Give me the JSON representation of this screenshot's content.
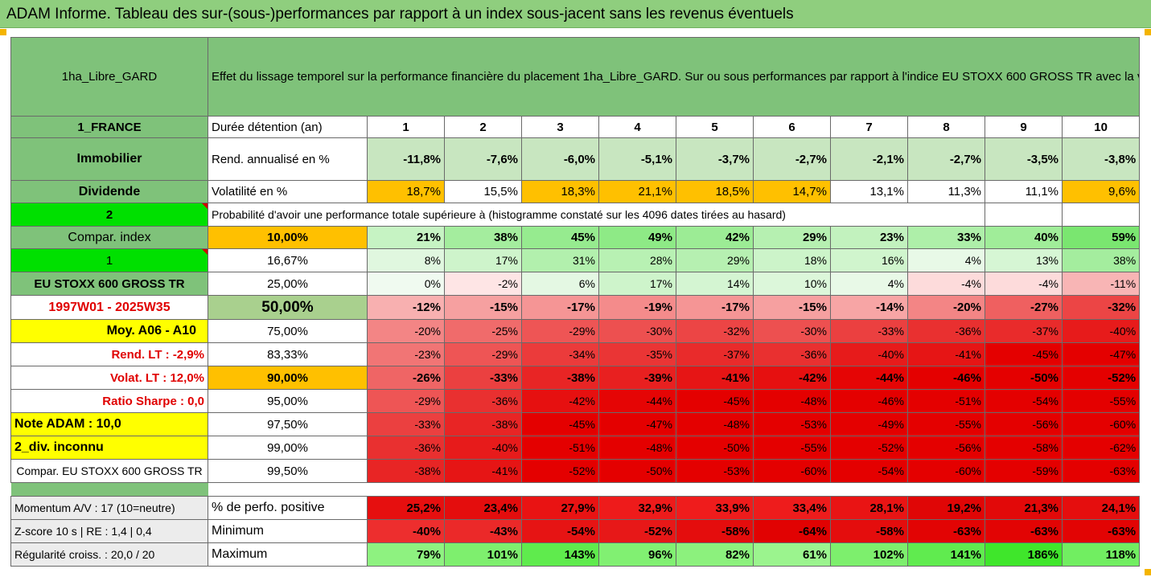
{
  "title": "ADAM Informe. Tableau des sur-(sous-)performances par rapport à un index sous-jacent sans les revenus éventuels",
  "fund": "1ha_Libre_GARD",
  "description": "Effet du lissage temporel sur la performance financière du placement 1ha_Libre_GARD. Sur ou sous performances par rapport à l'indice EU STOXX 600 GROSS TR avec la valeur de l'actif sans prise en compte des revenus.",
  "left": {
    "country": "1_FRANCE",
    "category": "Immobilier",
    "dividend": "Dividende",
    "num2": "2",
    "compar_index": "Compar. index",
    "num1": "1",
    "index_name": "EU STOXX 600 GROSS TR",
    "period": "1997W01 - 2025W35",
    "moy": "Moy. A06 - A10",
    "rend_lt": "Rend. LT :    -2,9%",
    "volat_lt": "Volat. LT :    12,0%",
    "sharpe": "Ratio Sharpe :    0,0",
    "note": "Note ADAM : 10,0",
    "div": "2_div. inconnu",
    "compar_full": "Compar. EU STOXX 600 GROSS TR",
    "momentum": "Momentum A/V : 17 (10=neutre)",
    "zscore": "Z-score 10 s  |  RE : 1,4  |  0,4",
    "regularite": "Régularité croiss. : 20,0 / 20"
  },
  "labels": {
    "duree": "Durée détention (an)",
    "rend": "Rend. annualisé en %",
    "volat": "Volatilité en %",
    "proba": "Probabilité d'avoir une performance totale supérieure à (histogramme constaté sur les 4096 dates tirées au hasard)",
    "perf_pos": "% de perfo. positive",
    "minimum": "Minimum",
    "maximum": "Maximum"
  },
  "years": [
    "1",
    "2",
    "3",
    "4",
    "5",
    "6",
    "7",
    "8",
    "9",
    "10"
  ],
  "rend": [
    "-11,8%",
    "-7,6%",
    "-6,0%",
    "-5,1%",
    "-3,7%",
    "-2,7%",
    "-2,1%",
    "-2,7%",
    "-3,5%",
    "-3,8%"
  ],
  "volat": [
    "18,7%",
    "15,5%",
    "18,3%",
    "21,1%",
    "18,5%",
    "14,7%",
    "13,1%",
    "11,3%",
    "11,1%",
    "9,6%"
  ],
  "rows": [
    {
      "p": "10,00%",
      "v": [
        "21%",
        "38%",
        "45%",
        "49%",
        "42%",
        "29%",
        "23%",
        "33%",
        "40%",
        "59%"
      ]
    },
    {
      "p": "16,67%",
      "v": [
        "8%",
        "17%",
        "31%",
        "28%",
        "29%",
        "18%",
        "16%",
        "4%",
        "13%",
        "38%"
      ]
    },
    {
      "p": "25,00%",
      "v": [
        "0%",
        "-2%",
        "6%",
        "17%",
        "14%",
        "10%",
        "4%",
        "-4%",
        "-4%",
        "-11%"
      ]
    },
    {
      "p": "50,00%",
      "v": [
        "-12%",
        "-15%",
        "-17%",
        "-19%",
        "-17%",
        "-15%",
        "-14%",
        "-20%",
        "-27%",
        "-32%"
      ]
    },
    {
      "p": "75,00%",
      "v": [
        "-20%",
        "-25%",
        "-29%",
        "-30%",
        "-32%",
        "-30%",
        "-33%",
        "-36%",
        "-37%",
        "-40%"
      ]
    },
    {
      "p": "83,33%",
      "v": [
        "-23%",
        "-29%",
        "-34%",
        "-35%",
        "-37%",
        "-36%",
        "-40%",
        "-41%",
        "-45%",
        "-47%"
      ]
    },
    {
      "p": "90,00%",
      "v": [
        "-26%",
        "-33%",
        "-38%",
        "-39%",
        "-41%",
        "-42%",
        "-44%",
        "-46%",
        "-50%",
        "-52%"
      ]
    },
    {
      "p": "95,00%",
      "v": [
        "-29%",
        "-36%",
        "-42%",
        "-44%",
        "-45%",
        "-48%",
        "-46%",
        "-51%",
        "-54%",
        "-55%"
      ]
    },
    {
      "p": "97,50%",
      "v": [
        "-33%",
        "-38%",
        "-45%",
        "-47%",
        "-48%",
        "-53%",
        "-49%",
        "-55%",
        "-56%",
        "-60%"
      ]
    },
    {
      "p": "99,00%",
      "v": [
        "-36%",
        "-40%",
        "-51%",
        "-48%",
        "-50%",
        "-55%",
        "-52%",
        "-56%",
        "-58%",
        "-62%"
      ]
    },
    {
      "p": "99,50%",
      "v": [
        "-38%",
        "-41%",
        "-52%",
        "-50%",
        "-53%",
        "-60%",
        "-54%",
        "-60%",
        "-59%",
        "-63%"
      ]
    }
  ],
  "perf_pos": [
    "25,2%",
    "23,4%",
    "27,9%",
    "32,9%",
    "33,9%",
    "33,4%",
    "28,1%",
    "19,2%",
    "21,3%",
    "24,1%"
  ],
  "minimum": [
    "-40%",
    "-43%",
    "-54%",
    "-52%",
    "-58%",
    "-64%",
    "-58%",
    "-63%",
    "-63%",
    "-63%"
  ],
  "maximum": [
    "79%",
    "101%",
    "143%",
    "96%",
    "82%",
    "61%",
    "102%",
    "141%",
    "186%",
    "118%"
  ]
}
